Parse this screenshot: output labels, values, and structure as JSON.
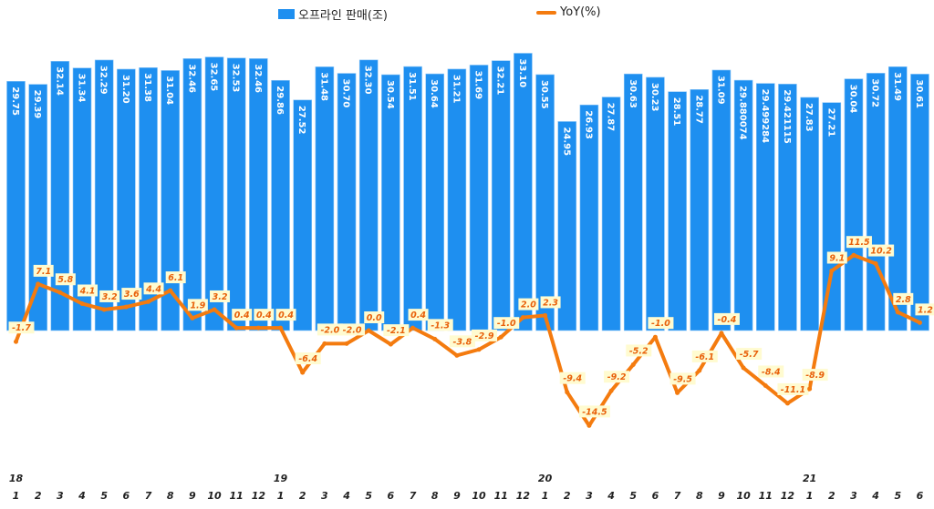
{
  "chart_data": {
    "type": "bar+line",
    "title": "",
    "legend": {
      "position": "top"
    },
    "categories": [
      "1",
      "2",
      "3",
      "4",
      "5",
      "6",
      "7",
      "8",
      "9",
      "10",
      "11",
      "12",
      "1",
      "2",
      "3",
      "4",
      "5",
      "6",
      "7",
      "8",
      "9",
      "10",
      "11",
      "12",
      "1",
      "2",
      "3",
      "4",
      "5",
      "6",
      "7",
      "8",
      "9",
      "10",
      "11",
      "12",
      "1",
      "2",
      "3",
      "4",
      "5",
      "6"
    ],
    "year_labels": [
      {
        "index": 0,
        "label": "18"
      },
      {
        "index": 12,
        "label": "19"
      },
      {
        "index": 24,
        "label": "20"
      },
      {
        "index": 36,
        "label": "21"
      }
    ],
    "series": [
      {
        "name": "오프라인 판매(조)",
        "type": "bar",
        "color": "#1e8ff0",
        "labels": [
          "29.75",
          "29.39",
          "32.14",
          "31.34",
          "32.29",
          "31.20",
          "31.38",
          "31.04",
          "32.46",
          "32.65",
          "32.53",
          "32.46",
          "29.86",
          "27.52",
          "31.48",
          "30.70",
          "32.30",
          "30.54",
          "31.51",
          "30.64",
          "31.21",
          "31.69",
          "32.21",
          "33.10",
          "30.55",
          "24.95",
          "26.93",
          "27.87",
          "30.63",
          "30.23",
          "28.51",
          "28.77",
          "31.09",
          "29.880074",
          "29.499284",
          "29.421115",
          "27.83",
          "27.21",
          "30.04",
          "30.72",
          "31.49",
          "30.61"
        ],
        "values": [
          29.75,
          29.39,
          32.14,
          31.34,
          32.29,
          31.2,
          31.38,
          31.04,
          32.46,
          32.65,
          32.53,
          32.46,
          29.86,
          27.52,
          31.48,
          30.7,
          32.3,
          30.54,
          31.51,
          30.64,
          31.21,
          31.69,
          32.21,
          33.1,
          30.55,
          24.95,
          26.93,
          27.87,
          30.63,
          30.23,
          28.51,
          28.77,
          31.09,
          29.880074,
          29.499284,
          29.421115,
          27.83,
          27.21,
          30.04,
          30.72,
          31.49,
          30.61
        ]
      },
      {
        "name": "YoY(%)",
        "type": "line",
        "color": "#f47b0f",
        "labels": [
          "-1.7",
          "7.1",
          "5.8",
          "4.1",
          "3.2",
          "3.6",
          "4.4",
          "6.1",
          "1.9",
          "3.2",
          "0.4",
          "0.4",
          "0.4",
          "-6.4",
          "-2.0",
          "-2.0",
          "0.0",
          "-2.1",
          "0.4",
          "-1.3",
          "-3.8",
          "-2.9",
          "-1.0",
          "2.0",
          "2.3",
          "-9.4",
          "-14.5",
          "-9.2",
          "-5.2",
          "-1.0",
          "-9.5",
          "-6.1",
          "-0.4",
          "-5.7",
          "-8.4",
          "-11.1",
          "-8.9",
          "9.1",
          "11.5",
          "10.2",
          "2.8",
          "1.2"
        ],
        "values": [
          -1.7,
          7.1,
          5.8,
          4.1,
          3.2,
          3.6,
          4.4,
          6.1,
          1.9,
          3.2,
          0.4,
          0.4,
          0.4,
          -6.4,
          -2.0,
          -2.0,
          0.0,
          -2.1,
          0.4,
          -1.3,
          -3.8,
          -2.9,
          -1.0,
          2.0,
          2.3,
          -9.4,
          -14.5,
          -9.2,
          -5.2,
          -1.0,
          -9.5,
          -6.1,
          -0.4,
          -5.7,
          -8.4,
          -11.1,
          -8.9,
          9.1,
          11.5,
          10.2,
          2.8,
          1.2
        ]
      }
    ]
  }
}
